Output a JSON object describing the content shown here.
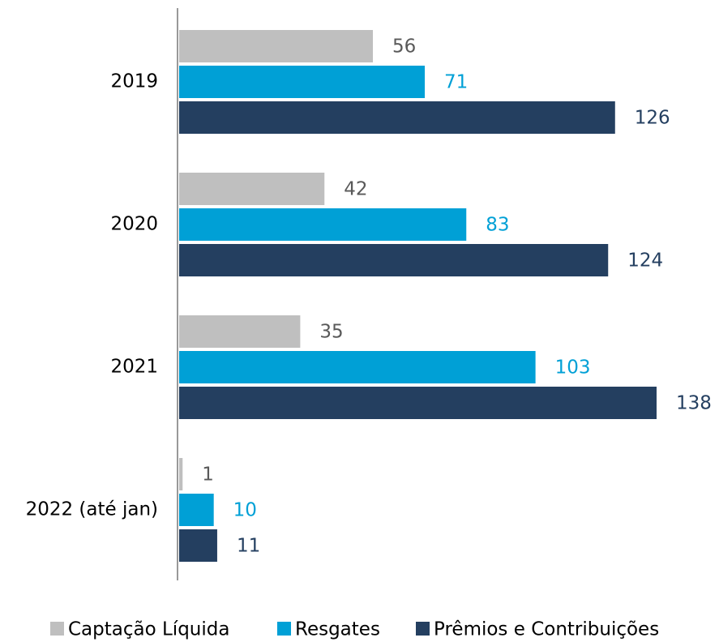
{
  "chart_data": {
    "type": "bar",
    "orientation": "horizontal",
    "categories": [
      "2019",
      "2020",
      "2021",
      "2022 (até jan)"
    ],
    "series": [
      {
        "name": "Captação Líquida",
        "color": "#bfbfbf",
        "label_color": "#595959",
        "values": [
          56,
          42,
          35,
          1
        ]
      },
      {
        "name": "Resgates",
        "color": "#00a0d6",
        "label_color": "#00a0d6",
        "values": [
          71,
          83,
          103,
          10
        ]
      },
      {
        "name": "Prêmios e Contribuições",
        "color": "#243f60",
        "label_color": "#243f60",
        "values": [
          126,
          124,
          138,
          11
        ]
      }
    ],
    "legend": "bottom"
  }
}
